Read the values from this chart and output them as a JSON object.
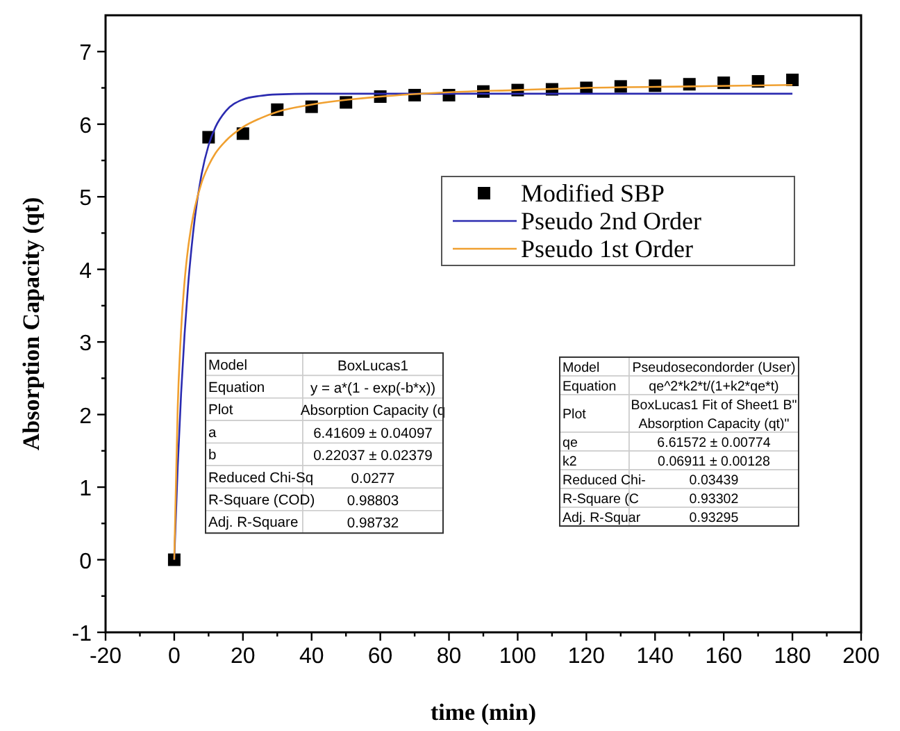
{
  "chart_data": {
    "type": "scatter",
    "xlabel": "time (min)",
    "ylabel": "Absorption Capacity (qt)",
    "xlim": [
      -20,
      200
    ],
    "ylim": [
      -1,
      7.5
    ],
    "xticks": [
      -20,
      {
        "value": -10,
        "label": null
      },
      0,
      {
        "value": 10,
        "label": null
      },
      20,
      {
        "value": 30,
        "label": null
      },
      40,
      {
        "value": 50,
        "label": null
      },
      60,
      {
        "value": 70,
        "label": null
      },
      80,
      {
        "value": 90,
        "label": null
      },
      100,
      {
        "value": 110,
        "label": null
      },
      120,
      {
        "value": 130,
        "label": null
      },
      140,
      {
        "value": 150,
        "label": null
      },
      160,
      {
        "value": 170,
        "label": null
      },
      180,
      {
        "value": 190,
        "label": null
      },
      200
    ],
    "yticks": [
      -1,
      {
        "value": -0.5,
        "label": null
      },
      0,
      {
        "value": 0.5,
        "label": null
      },
      1,
      {
        "value": 1.5,
        "label": null
      },
      2,
      {
        "value": 2.5,
        "label": null
      },
      3,
      {
        "value": 3.5,
        "label": null
      },
      4,
      {
        "value": 4.5,
        "label": null
      },
      5,
      {
        "value": 5.5,
        "label": null
      },
      6,
      {
        "value": 6.5,
        "label": null
      },
      7
    ],
    "grid": false,
    "legend": "top right",
    "series": [
      {
        "name": "Modified SBP",
        "marker": "square",
        "color": "#000000",
        "x": [
          0,
          10,
          20,
          30,
          40,
          50,
          60,
          70,
          80,
          90,
          100,
          110,
          120,
          130,
          140,
          150,
          160,
          170,
          180
        ],
        "values": [
          0,
          5.82,
          5.87,
          6.2,
          6.24,
          6.3,
          6.38,
          6.4,
          6.4,
          6.45,
          6.47,
          6.48,
          6.5,
          6.52,
          6.53,
          6.55,
          6.57,
          6.59,
          6.61
        ]
      },
      {
        "name": "Pseudo 2nd Order",
        "type": "line",
        "line_style": "solid",
        "color": "#2b2bb0",
        "x": [
          0,
          1,
          2,
          3,
          4,
          5,
          6,
          8,
          10,
          12,
          15,
          20,
          25,
          30,
          40,
          60,
          80,
          100,
          120,
          150,
          180
        ],
        "values": [
          0,
          1.27,
          2.29,
          3.1,
          3.76,
          4.28,
          4.71,
          5.32,
          5.71,
          5.96,
          6.18,
          6.34,
          6.39,
          6.41,
          6.42,
          6.42,
          6.42,
          6.42,
          6.42,
          6.42,
          6.42
        ]
      },
      {
        "name": "Pseudo 1st Order",
        "type": "line",
        "line_style": "solid",
        "color": "#f0a030",
        "x": [
          0,
          1,
          2,
          3,
          4,
          5,
          6,
          8,
          10,
          12,
          15,
          20,
          25,
          30,
          40,
          60,
          80,
          100,
          120,
          150,
          180
        ],
        "values": [
          0,
          2.08,
          3.16,
          3.83,
          4.28,
          4.6,
          4.85,
          5.2,
          5.43,
          5.6,
          5.77,
          5.96,
          6.08,
          6.17,
          6.27,
          6.38,
          6.44,
          6.47,
          6.5,
          6.52,
          6.54
        ]
      }
    ],
    "annotations": [
      "Model",
      "BoxLucas1",
      "Equation",
      "y = a*(1 - exp(-b*x))",
      "Plot",
      "Absorption Capacity (q",
      "a",
      "6.41609 ± 0.04097",
      "b",
      "0.22037 ± 0.02379",
      "Reduced Chi-Sq",
      "0.0277",
      "R-Square (COD)",
      "0.98803",
      "Adj. R-Square",
      "0.98732",
      "Model",
      "Pseudosecondorder (User)",
      "Equation",
      "qe^2*k2*t/(1+k2*qe*t)",
      "Plot",
      "BoxLucas1 Fit of Sheet1 B\"\nAbsorption Capacity (qt)\"",
      "qe",
      "6.61572 ± 0.00774",
      "k2",
      "0.06911 ± 0.00128",
      "Reduced Chi-",
      "0.03439",
      "R-Square (C",
      "0.93302",
      "Adj. R-Squar",
      "0.93295"
    ]
  }
}
